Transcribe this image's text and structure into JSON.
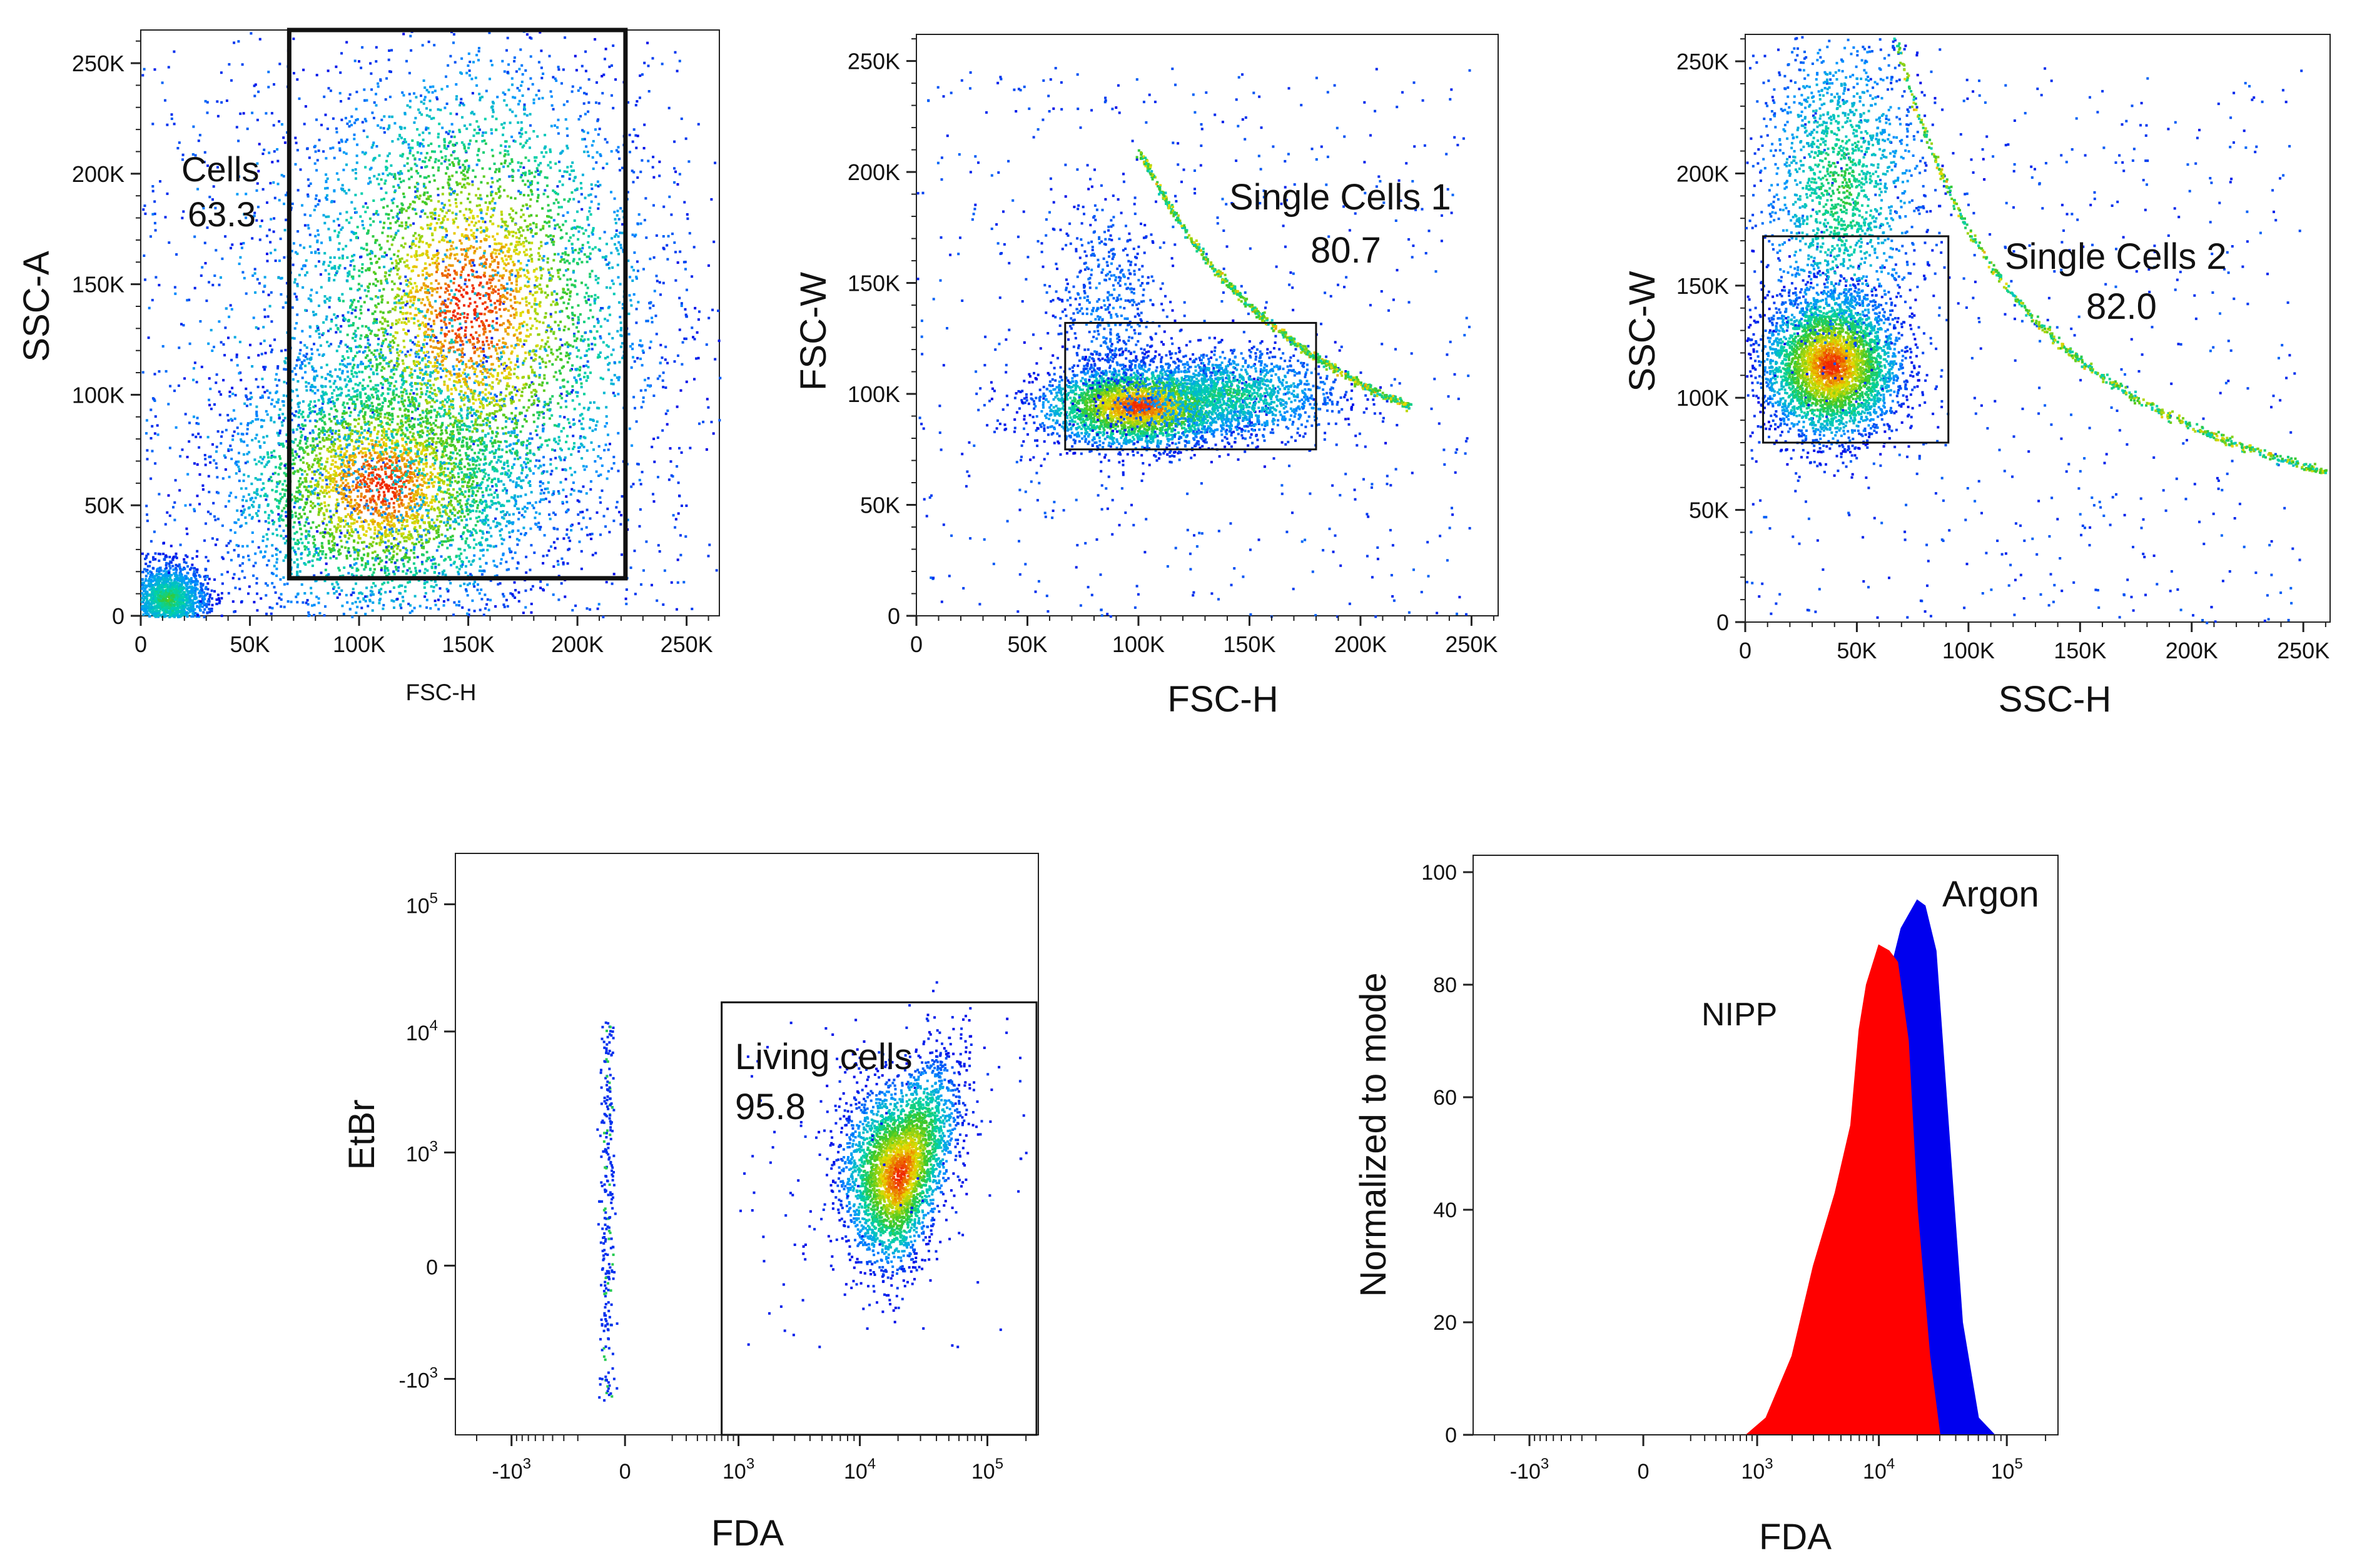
{
  "chart_data": [
    {
      "type": "scatter",
      "xlabel": "FSC-H",
      "ylabel": "SSC-A",
      "x_ticks": [
        "0",
        "50K",
        "100K",
        "150K",
        "200K",
        "250K"
      ],
      "y_ticks": [
        "0",
        "50K",
        "100K",
        "150K",
        "200K",
        "250K"
      ],
      "xlim": [
        0,
        265000
      ],
      "ylim": [
        0,
        265000
      ],
      "gate": {
        "label": "Cells",
        "percent": "63.3",
        "x_range": [
          68000,
          222000
        ],
        "y_range": [
          17000,
          265000
        ]
      },
      "populations": [
        {
          "cx": 12000,
          "cy": 8000,
          "sx": 9000,
          "sy": 8000,
          "n": 1600
        },
        {
          "cx": 110000,
          "cy": 60000,
          "sx": 35000,
          "sy": 30000,
          "n": 3600
        },
        {
          "cx": 150000,
          "cy": 140000,
          "sx": 40000,
          "sy": 55000,
          "n": 4200
        },
        {
          "cx": 120000,
          "cy": 110000,
          "sx": 70000,
          "sy": 80000,
          "n": 1200
        }
      ]
    },
    {
      "type": "scatter",
      "xlabel": "FSC-H",
      "ylabel": "FSC-W",
      "x_ticks": [
        "0",
        "50K",
        "100K",
        "150K",
        "200K",
        "250K"
      ],
      "y_ticks": [
        "0",
        "50K",
        "100K",
        "150K",
        "200K",
        "250K"
      ],
      "xlim": [
        0,
        262000
      ],
      "ylim": [
        0,
        262000
      ],
      "gate": {
        "label": "Single Cells 1",
        "percent": "80.7",
        "x_range": [
          67000,
          180000
        ],
        "y_range": [
          75000,
          132000
        ]
      },
      "populations": [
        {
          "cx": 100000,
          "cy": 95000,
          "sx": 22000,
          "sy": 9000,
          "n": 3200
        },
        {
          "cx": 140000,
          "cy": 100000,
          "sx": 25000,
          "sy": 10000,
          "n": 1400
        },
        {
          "cx": 85000,
          "cy": 140000,
          "sx": 12000,
          "sy": 25000,
          "n": 500
        }
      ],
      "diagonal_edge": {
        "x_start": 100000,
        "x_end": 222000
      }
    },
    {
      "type": "scatter",
      "xlabel": "SSC-H",
      "ylabel": "SSC-W",
      "x_ticks": [
        "0",
        "50K",
        "100K",
        "150K",
        "200K",
        "250K"
      ],
      "y_ticks": [
        "0",
        "50K",
        "100K",
        "150K",
        "200K",
        "250K"
      ],
      "xlim": [
        0,
        262000
      ],
      "ylim": [
        0,
        262000
      ],
      "gate": {
        "label": "Single Cells 2",
        "percent": "82.0",
        "x_range": [
          8000,
          91000
        ],
        "y_range": [
          80000,
          172000
        ]
      },
      "populations": [
        {
          "cx": 38000,
          "cy": 115000,
          "sx": 15000,
          "sy": 16000,
          "n": 3800
        },
        {
          "cx": 42000,
          "cy": 195000,
          "sx": 18000,
          "sy": 35000,
          "n": 1600
        }
      ],
      "diagonal_edge": {
        "x_start": 55000,
        "x_end": 260000
      }
    },
    {
      "type": "scatter",
      "xlabel": "FDA",
      "ylabel": "EtBr",
      "x_ticks": [
        "-10^3",
        "0",
        "10^3",
        "10^4",
        "10^5"
      ],
      "y_ticks": [
        "-10^3",
        "0",
        "10^3",
        "10^4",
        "10^5"
      ],
      "scale": "biexponential",
      "gate": {
        "label": "Living cells",
        "percent": "95.8",
        "x_range": [
          700,
          250000
        ],
        "y_range": [
          -1500,
          17000
        ]
      },
      "populations": [
        {
          "cx": 20000,
          "cy": 600,
          "n": 3500
        },
        {
          "cx": -50,
          "cy": 6000,
          "n": 80
        },
        {
          "cx": -50,
          "cy": 0,
          "n": 80
        }
      ]
    },
    {
      "type": "area",
      "xlabel": "FDA",
      "ylabel": "Normalized to mode",
      "x_ticks": [
        "-10^3",
        "0",
        "10^3",
        "10^4",
        "10^5"
      ],
      "y_ticks": [
        "0",
        "20",
        "40",
        "60",
        "80",
        "100"
      ],
      "ylim": [
        0,
        103
      ],
      "scale": "biexponential",
      "series": [
        {
          "name": "Argon",
          "color": "#0000ee",
          "x": [
            800,
            1500,
            3000,
            6000,
            10000,
            15000,
            20000,
            23000,
            28000,
            35000,
            45000,
            60000,
            80000
          ],
          "values": [
            0,
            4,
            20,
            48,
            74,
            90,
            95,
            94,
            86,
            55,
            20,
            3,
            0
          ]
        },
        {
          "name": "NIPP",
          "color": "#ff0000",
          "x": [
            800,
            1200,
            2000,
            3000,
            4500,
            6000,
            7000,
            8000,
            10000,
            12000,
            14000,
            17000,
            20000,
            25000,
            30000
          ],
          "values": [
            0,
            3,
            14,
            30,
            43,
            55,
            72,
            80,
            87,
            86,
            84,
            70,
            40,
            14,
            0
          ]
        }
      ]
    }
  ]
}
